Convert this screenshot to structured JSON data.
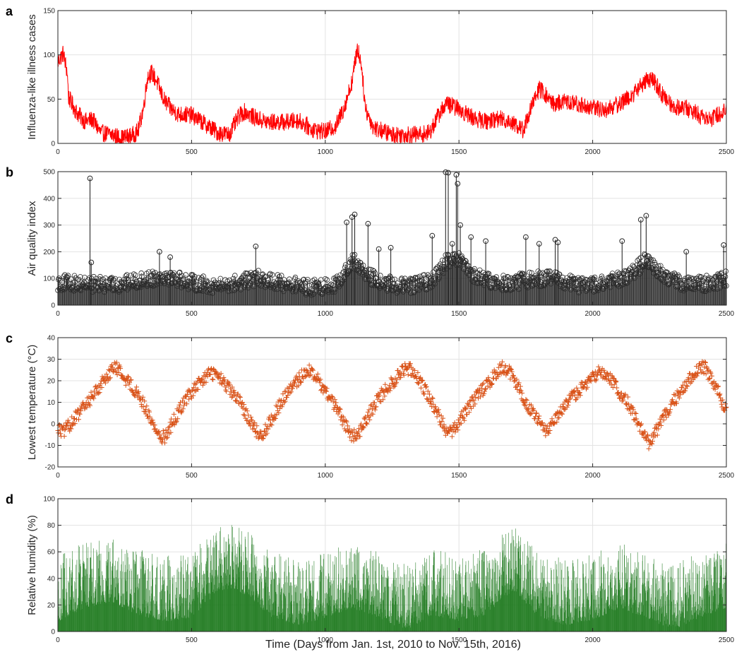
{
  "figure": {
    "xlabel": "Time (Days from Jan. 1st, 2010 to Nov. 15th, 2016)"
  },
  "chart_data": [
    {
      "panel_label": "a",
      "type": "line",
      "ylabel": "Influenza-like illness cases",
      "color": "#ff0000",
      "xlim": [
        0,
        2500
      ],
      "ylim": [
        0,
        150
      ],
      "xticks": [
        0,
        500,
        1000,
        1500,
        2000,
        2500
      ],
      "yticks": [
        0,
        50,
        100,
        150
      ],
      "grid": true,
      "marker": "none",
      "noise_amplitude": 10,
      "profile": [
        [
          0,
          92
        ],
        [
          20,
          102
        ],
        [
          35,
          80
        ],
        [
          40,
          52
        ],
        [
          70,
          35
        ],
        [
          100,
          25
        ],
        [
          130,
          27
        ],
        [
          160,
          12
        ],
        [
          200,
          10
        ],
        [
          240,
          6
        ],
        [
          280,
          9
        ],
        [
          300,
          14
        ],
        [
          320,
          40
        ],
        [
          335,
          75
        ],
        [
          350,
          80
        ],
        [
          370,
          70
        ],
        [
          395,
          50
        ],
        [
          420,
          40
        ],
        [
          450,
          33
        ],
        [
          500,
          32
        ],
        [
          550,
          22
        ],
        [
          600,
          12
        ],
        [
          640,
          10
        ],
        [
          680,
          32
        ],
        [
          700,
          36
        ],
        [
          730,
          30
        ],
        [
          780,
          24
        ],
        [
          850,
          24
        ],
        [
          900,
          26
        ],
        [
          950,
          16
        ],
        [
          1000,
          13
        ],
        [
          1040,
          20
        ],
        [
          1070,
          40
        ],
        [
          1100,
          70
        ],
        [
          1120,
          108
        ],
        [
          1135,
          90
        ],
        [
          1150,
          40
        ],
        [
          1180,
          18
        ],
        [
          1250,
          10
        ],
        [
          1300,
          10
        ],
        [
          1350,
          10
        ],
        [
          1390,
          12
        ],
        [
          1420,
          30
        ],
        [
          1450,
          45
        ],
        [
          1480,
          42
        ],
        [
          1520,
          35
        ],
        [
          1560,
          28
        ],
        [
          1600,
          25
        ],
        [
          1650,
          28
        ],
        [
          1700,
          24
        ],
        [
          1740,
          15
        ],
        [
          1760,
          32
        ],
        [
          1790,
          55
        ],
        [
          1800,
          62
        ],
        [
          1820,
          56
        ],
        [
          1850,
          45
        ],
        [
          1900,
          47
        ],
        [
          1950,
          44
        ],
        [
          2000,
          40
        ],
        [
          2050,
          38
        ],
        [
          2100,
          45
        ],
        [
          2150,
          55
        ],
        [
          2200,
          72
        ],
        [
          2230,
          70
        ],
        [
          2260,
          55
        ],
        [
          2300,
          42
        ],
        [
          2350,
          40
        ],
        [
          2400,
          32
        ],
        [
          2450,
          28
        ],
        [
          2500,
          40
        ]
      ]
    },
    {
      "panel_label": "b",
      "type": "scatter",
      "ylabel": "Air quality index",
      "color": "#2b2b2b",
      "xlim": [
        0,
        2500
      ],
      "ylim": [
        0,
        500
      ],
      "xticks": [
        0,
        500,
        1000,
        1500,
        2000,
        2500
      ],
      "yticks": [
        0,
        100,
        200,
        300,
        400,
        500
      ],
      "grid": true,
      "marker": "circle-stem",
      "noise_amplitude": 30,
      "profile": [
        [
          0,
          85
        ],
        [
          200,
          75
        ],
        [
          300,
          90
        ],
        [
          400,
          110
        ],
        [
          500,
          85
        ],
        [
          600,
          70
        ],
        [
          700,
          90
        ],
        [
          750,
          100
        ],
        [
          850,
          80
        ],
        [
          950,
          65
        ],
        [
          1050,
          80
        ],
        [
          1100,
          170
        ],
        [
          1150,
          120
        ],
        [
          1200,
          85
        ],
        [
          1300,
          70
        ],
        [
          1400,
          90
        ],
        [
          1450,
          160
        ],
        [
          1500,
          170
        ],
        [
          1550,
          110
        ],
        [
          1650,
          80
        ],
        [
          1700,
          85
        ],
        [
          1800,
          100
        ],
        [
          1850,
          100
        ],
        [
          1950,
          75
        ],
        [
          2050,
          80
        ],
        [
          2150,
          120
        ],
        [
          2200,
          170
        ],
        [
          2250,
          120
        ],
        [
          2350,
          75
        ],
        [
          2450,
          85
        ],
        [
          2500,
          100
        ]
      ],
      "spikes": [
        [
          120,
          475
        ],
        [
          125,
          160
        ],
        [
          380,
          200
        ],
        [
          420,
          180
        ],
        [
          740,
          220
        ],
        [
          1080,
          310
        ],
        [
          1100,
          330
        ],
        [
          1110,
          340
        ],
        [
          1160,
          305
        ],
        [
          1200,
          210
        ],
        [
          1245,
          215
        ],
        [
          1400,
          260
        ],
        [
          1450,
          498
        ],
        [
          1460,
          496
        ],
        [
          1475,
          230
        ],
        [
          1490,
          488
        ],
        [
          1495,
          455
        ],
        [
          1505,
          300
        ],
        [
          1545,
          255
        ],
        [
          1600,
          240
        ],
        [
          1750,
          255
        ],
        [
          1800,
          230
        ],
        [
          1860,
          245
        ],
        [
          1870,
          235
        ],
        [
          2110,
          240
        ],
        [
          2180,
          320
        ],
        [
          2200,
          335
        ],
        [
          2350,
          200
        ],
        [
          2490,
          225
        ]
      ]
    },
    {
      "panel_label": "c",
      "type": "scatter",
      "ylabel": "Lowest temperature (°C)",
      "color": "#d95319",
      "xlim": [
        0,
        2500
      ],
      "ylim": [
        -20,
        40
      ],
      "xticks": [
        0,
        500,
        1000,
        1500,
        2000,
        2500
      ],
      "yticks": [
        -20,
        -10,
        0,
        10,
        20,
        30,
        40
      ],
      "grid": true,
      "marker": "plus",
      "noise_amplitude": 3,
      "profile": [
        [
          0,
          -2
        ],
        [
          20,
          -4
        ],
        [
          100,
          8
        ],
        [
          200,
          25
        ],
        [
          220,
          26
        ],
        [
          300,
          14
        ],
        [
          380,
          -6
        ],
        [
          400,
          -6
        ],
        [
          480,
          12
        ],
        [
          570,
          24
        ],
        [
          600,
          22
        ],
        [
          680,
          10
        ],
        [
          750,
          -5
        ],
        [
          770,
          -4
        ],
        [
          850,
          13
        ],
        [
          930,
          25
        ],
        [
          950,
          24
        ],
        [
          1030,
          10
        ],
        [
          1100,
          -6
        ],
        [
          1120,
          -5
        ],
        [
          1200,
          12
        ],
        [
          1300,
          26
        ],
        [
          1330,
          25
        ],
        [
          1400,
          10
        ],
        [
          1460,
          -5
        ],
        [
          1480,
          -3
        ],
        [
          1560,
          12
        ],
        [
          1660,
          26
        ],
        [
          1690,
          24
        ],
        [
          1760,
          8
        ],
        [
          1820,
          -3
        ],
        [
          1840,
          -2
        ],
        [
          1920,
          12
        ],
        [
          2030,
          25
        ],
        [
          2050,
          23
        ],
        [
          2130,
          10
        ],
        [
          2210,
          -9
        ],
        [
          2230,
          -5
        ],
        [
          2300,
          10
        ],
        [
          2400,
          27
        ],
        [
          2420,
          26
        ],
        [
          2470,
          15
        ],
        [
          2500,
          5
        ]
      ]
    },
    {
      "panel_label": "d",
      "type": "bar",
      "ylabel": "Relative humidity (%)",
      "color": "#1f7a1f",
      "xlim": [
        0,
        2500
      ],
      "ylim": [
        0,
        100
      ],
      "xticks": [
        0,
        500,
        1000,
        1500,
        2000,
        2500
      ],
      "yticks": [
        0,
        20,
        40,
        60,
        80,
        100
      ],
      "grid": true,
      "marker": "bar",
      "noise_amplitude": 25,
      "profile": [
        [
          0,
          25
        ],
        [
          100,
          35
        ],
        [
          200,
          40
        ],
        [
          300,
          30
        ],
        [
          400,
          25
        ],
        [
          500,
          28
        ],
        [
          600,
          48
        ],
        [
          650,
          50
        ],
        [
          700,
          45
        ],
        [
          800,
          28
        ],
        [
          900,
          22
        ],
        [
          1000,
          28
        ],
        [
          1100,
          35
        ],
        [
          1200,
          28
        ],
        [
          1300,
          18
        ],
        [
          1400,
          30
        ],
        [
          1500,
          25
        ],
        [
          1600,
          30
        ],
        [
          1700,
          48
        ],
        [
          1720,
          45
        ],
        [
          1800,
          28
        ],
        [
          1900,
          22
        ],
        [
          2000,
          26
        ],
        [
          2100,
          35
        ],
        [
          2200,
          28
        ],
        [
          2300,
          18
        ],
        [
          2400,
          28
        ],
        [
          2500,
          35
        ]
      ]
    }
  ]
}
